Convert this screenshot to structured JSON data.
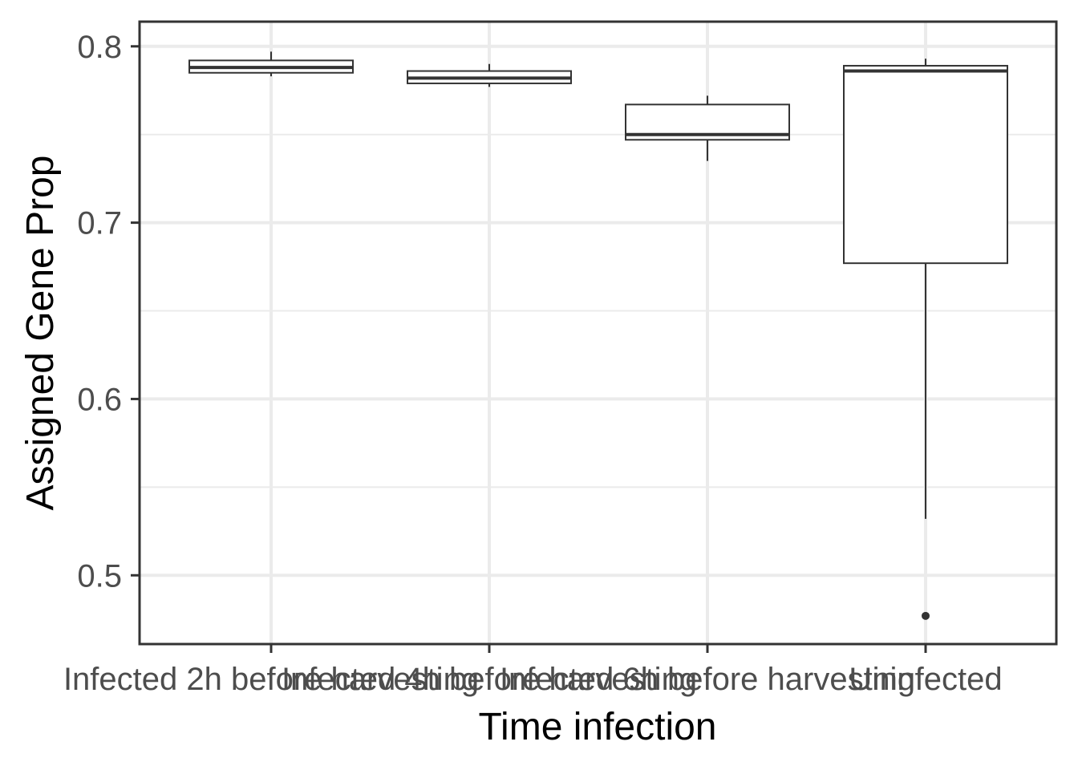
{
  "chart_data": {
    "type": "box",
    "xlabel": "Time infection",
    "ylabel": "Assigned Gene Prop",
    "ylim": [
      0.461,
      0.814
    ],
    "yticks": [
      0.5,
      0.6,
      0.7,
      0.8
    ],
    "ytick_labels": [
      "0.5",
      "0.6",
      "0.7",
      "0.8"
    ],
    "y_minor_ticks": [
      0.55,
      0.65,
      0.75
    ],
    "grid": true,
    "categories": [
      "Infected 2h before harvesting",
      "Infected 4h before harvesting",
      "Infected 6h before harvesting",
      "Uninfected"
    ],
    "boxes": [
      {
        "category": "Infected 2h before harvesting",
        "min": 0.783,
        "q1": 0.785,
        "median": 0.788,
        "q3": 0.792,
        "max": 0.797,
        "outliers": []
      },
      {
        "category": "Infected 4h before harvesting",
        "min": 0.777,
        "q1": 0.779,
        "median": 0.782,
        "q3": 0.786,
        "max": 0.79,
        "outliers": []
      },
      {
        "category": "Infected 6h before harvesting",
        "min": 0.735,
        "q1": 0.747,
        "median": 0.75,
        "q3": 0.767,
        "max": 0.772,
        "outliers": []
      },
      {
        "category": "Uninfected",
        "min": 0.532,
        "q1": 0.677,
        "median": 0.786,
        "q3": 0.789,
        "max": 0.793,
        "outliers": [
          0.477
        ]
      }
    ],
    "colors": {
      "box_line": "#333333",
      "box_fill": "#ffffff",
      "grid": "#ebebeb",
      "tick_text": "#4d4d4d",
      "title_text": "#000000"
    }
  }
}
